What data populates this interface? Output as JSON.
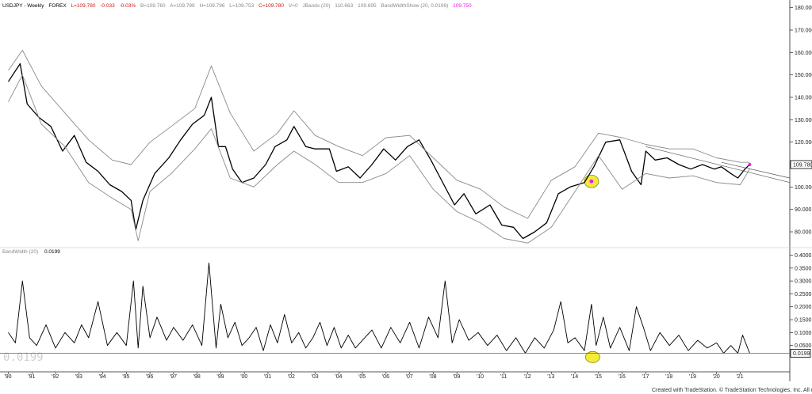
{
  "header": {
    "symbol": "USDJPY - Weekly",
    "market": "FOREX",
    "last": "L=109.780",
    "change": "-0.033",
    "change_pct": "-0.03%",
    "bid": "B=109.760",
    "ask": "A=109.799",
    "high": "H=109.796",
    "low": "L=109.753",
    "close": "C=109.780",
    "volume": "V=0",
    "study": "JBands (20)",
    "band_upper": "110.663",
    "band_lower": "109.695",
    "study2": "BandWidthShow (20, 0.0199)",
    "study2_value": "109.750"
  },
  "lower_panel": {
    "title": "BandWidth (20)",
    "value": "0.0199",
    "watermark": "0.0199"
  },
  "footer": {
    "created": "Created with TradeStation. © TradeStation Technologies, Inc. All rights reserved."
  },
  "chart_data": [
    {
      "type": "line",
      "title": "USDJPY - Weekly",
      "x": [
        "'90",
        "'91",
        "'92",
        "'93",
        "'94",
        "'95",
        "'96",
        "'97",
        "'98",
        "'99",
        "'00",
        "'01",
        "'02",
        "'03",
        "'04",
        "'05",
        "'06",
        "'07",
        "'08",
        "'09",
        "'10",
        "'11",
        "'12",
        "'13",
        "'14",
        "'15",
        "'16",
        "'17",
        "'18",
        "'19",
        "'20",
        "'21"
      ],
      "series": [
        {
          "name": "USDJPY",
          "x": [
            1990.0,
            1990.5,
            1990.8,
            1991.3,
            1991.8,
            1992.3,
            1992.8,
            1993.3,
            1993.8,
            1994.3,
            1994.8,
            1995.2,
            1995.4,
            1995.7,
            1996.2,
            1996.8,
            1997.3,
            1997.8,
            1998.3,
            1998.6,
            1998.9,
            1999.2,
            1999.5,
            1999.9,
            2000.4,
            2000.9,
            2001.3,
            2001.8,
            2002.1,
            2002.6,
            2003.0,
            2003.6,
            2003.9,
            2004.4,
            2004.9,
            2005.4,
            2005.9,
            2006.4,
            2006.9,
            2007.4,
            2007.9,
            2008.3,
            2008.9,
            2009.3,
            2009.8,
            2010.4,
            2010.9,
            2011.4,
            2011.8,
            2012.3,
            2012.8,
            2013.3,
            2013.8,
            2014.4,
            2014.8,
            2015.3,
            2015.9,
            2016.4,
            2016.8,
            2017.0,
            2017.4,
            2017.9,
            2018.4,
            2018.9,
            2019.4,
            2019.9,
            2020.2,
            2020.6,
            2020.9,
            2021.2,
            2021.4
          ],
          "values": [
            147,
            155,
            137,
            131,
            127,
            116,
            123,
            111,
            107,
            101,
            98,
            94,
            81,
            94,
            106,
            113,
            121,
            128,
            132,
            140,
            118,
            118,
            108,
            102,
            104,
            110,
            118,
            121,
            127,
            118,
            117,
            117,
            107,
            109,
            104,
            110,
            117,
            112,
            118,
            121,
            112,
            104,
            92,
            97,
            88,
            92,
            83,
            82,
            77,
            80,
            84,
            97,
            100,
            102,
            109,
            120,
            121,
            107,
            101,
            116,
            112,
            113,
            110,
            108,
            110,
            108,
            109,
            106,
            104,
            108,
            110
          ]
        },
        {
          "name": "Upper band",
          "x": [
            1990.0,
            1990.6,
            1991.4,
            1992.4,
            1993.4,
            1994.4,
            1995.2,
            1996.0,
            1996.9,
            1997.9,
            1998.6,
            1999.4,
            2000.4,
            2001.4,
            2002.1,
            2003.0,
            2004.0,
            2005.0,
            2006.0,
            2007.0,
            2008.0,
            2009.0,
            2010.0,
            2011.0,
            2012.0,
            2013.0,
            2014.0,
            2015.0,
            2016.0,
            2017.0,
            2018.0,
            2019.0,
            2020.0,
            2021.0,
            2021.4
          ],
          "values": [
            152,
            161,
            145,
            133,
            121,
            112,
            110,
            120,
            127,
            135,
            154,
            133,
            116,
            124,
            134,
            123,
            118,
            114,
            122,
            123,
            113,
            103,
            99,
            91,
            86,
            103,
            109,
            124,
            122,
            119,
            117,
            117,
            113,
            111,
            111
          ]
        },
        {
          "name": "Lower band",
          "x": [
            1990.0,
            1990.6,
            1991.4,
            1992.4,
            1993.4,
            1994.4,
            1995.2,
            1995.5,
            1996.0,
            1996.9,
            1997.9,
            1998.6,
            1999.4,
            2000.4,
            2001.4,
            2002.1,
            2003.0,
            2004.0,
            2005.0,
            2006.0,
            2007.0,
            2008.0,
            2009.0,
            2010.0,
            2011.0,
            2012.0,
            2013.0,
            2014.0,
            2015.0,
            2016.0,
            2017.0,
            2018.0,
            2019.0,
            2020.0,
            2021.0,
            2021.4
          ],
          "values": [
            138,
            150,
            128,
            118,
            102,
            95,
            90,
            76,
            98,
            106,
            117,
            126,
            104,
            100,
            110,
            116,
            110,
            102,
            102,
            106,
            114,
            99,
            89,
            84,
            77,
            75,
            82,
            98,
            114,
            99,
            106,
            104,
            105,
            102,
            101,
            108
          ]
        },
        {
          "name": "Trendline 1",
          "x": [
            2017.0,
            2023.1
          ],
          "values": [
            118,
            102
          ]
        },
        {
          "name": "Trendline 2",
          "x": [
            2020.2,
            2023.1
          ],
          "values": [
            111,
            104
          ]
        }
      ],
      "highlight": {
        "x": 2014.7,
        "y": 102.5,
        "color": "#f4ec3a"
      },
      "marker_color": "#e81ce8",
      "ylabel": "",
      "ylim": [
        74,
        182
      ],
      "yticks": [
        80,
        90,
        100,
        110,
        120,
        130,
        140,
        150,
        160,
        170,
        180
      ],
      "ytick_labels": [
        "80.000",
        "90.000",
        "100.000",
        "110.000",
        "120.000",
        "130.000",
        "140.000",
        "150.000",
        "160.000",
        "170.000",
        "180.000"
      ],
      "last_label": "109.780",
      "grid": false
    },
    {
      "type": "line",
      "title": "BandWidth (20)",
      "series": [
        {
          "name": "BandWidth",
          "x": [
            1990.0,
            1990.3,
            1990.6,
            1990.9,
            1991.2,
            1991.6,
            1992.0,
            1992.4,
            1992.8,
            1993.1,
            1993.4,
            1993.8,
            1994.2,
            1994.6,
            1995.0,
            1995.3,
            1995.5,
            1995.7,
            1996.0,
            1996.3,
            1996.7,
            1997.0,
            1997.4,
            1997.8,
            1998.2,
            1998.5,
            1998.8,
            1999.0,
            1999.3,
            1999.6,
            1999.9,
            2000.2,
            2000.5,
            2000.8,
            2001.1,
            2001.4,
            2001.7,
            2002.0,
            2002.3,
            2002.6,
            2002.9,
            2003.2,
            2003.5,
            2003.8,
            2004.1,
            2004.4,
            2004.7,
            2005.0,
            2005.4,
            2005.8,
            2006.2,
            2006.6,
            2007.0,
            2007.4,
            2007.8,
            2008.2,
            2008.5,
            2008.8,
            2009.1,
            2009.5,
            2009.9,
            2010.3,
            2010.7,
            2011.1,
            2011.5,
            2011.9,
            2012.3,
            2012.7,
            2013.1,
            2013.4,
            2013.7,
            2014.0,
            2014.4,
            2014.7,
            2014.9,
            2015.2,
            2015.5,
            2015.9,
            2016.3,
            2016.6,
            2016.9,
            2017.2,
            2017.6,
            2018.0,
            2018.4,
            2018.8,
            2019.2,
            2019.6,
            2020.0,
            2020.3,
            2020.6,
            2020.9,
            2021.1,
            2021.4
          ],
          "values": [
            0.1,
            0.06,
            0.3,
            0.08,
            0.05,
            0.13,
            0.04,
            0.1,
            0.06,
            0.13,
            0.08,
            0.22,
            0.05,
            0.1,
            0.05,
            0.3,
            0.04,
            0.28,
            0.08,
            0.16,
            0.07,
            0.12,
            0.07,
            0.13,
            0.05,
            0.37,
            0.04,
            0.21,
            0.08,
            0.14,
            0.05,
            0.08,
            0.12,
            0.03,
            0.13,
            0.06,
            0.17,
            0.06,
            0.1,
            0.04,
            0.08,
            0.14,
            0.05,
            0.12,
            0.04,
            0.09,
            0.04,
            0.07,
            0.11,
            0.04,
            0.12,
            0.06,
            0.14,
            0.04,
            0.16,
            0.08,
            0.3,
            0.06,
            0.15,
            0.07,
            0.1,
            0.05,
            0.09,
            0.03,
            0.08,
            0.02,
            0.08,
            0.04,
            0.11,
            0.22,
            0.06,
            0.08,
            0.03,
            0.21,
            0.05,
            0.16,
            0.04,
            0.12,
            0.03,
            0.2,
            0.12,
            0.03,
            0.1,
            0.05,
            0.09,
            0.03,
            0.07,
            0.04,
            0.06,
            0.02,
            0.05,
            0.02,
            0.09,
            0.02
          ]
        }
      ],
      "highlight": {
        "x": 2014.75,
        "y": 0.005,
        "color": "#f4ec3a"
      },
      "ylim": [
        -0.04,
        0.42
      ],
      "yticks": [
        0.05,
        0.1,
        0.15,
        0.2,
        0.25,
        0.3,
        0.35,
        0.4
      ],
      "ytick_labels": [
        "0.0500",
        "0.1000",
        "0.1500",
        "0.2000",
        "0.2500",
        "0.3000",
        "0.3500",
        "0.4000"
      ],
      "reference_line": 0.0199,
      "last_label": "0.0199",
      "grid": false
    }
  ]
}
